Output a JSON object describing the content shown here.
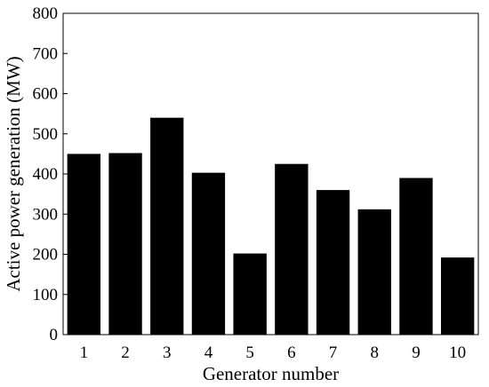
{
  "chart_data": {
    "type": "bar",
    "title": "",
    "xlabel": "Generator number",
    "ylabel": "Active power generation (MW)",
    "categories": [
      "1",
      "2",
      "3",
      "4",
      "5",
      "6",
      "7",
      "8",
      "9",
      "10"
    ],
    "values": [
      450,
      452,
      540,
      403,
      202,
      425,
      360,
      312,
      390,
      192
    ],
    "ylim": [
      0,
      800
    ],
    "yticks": [
      0,
      100,
      200,
      300,
      400,
      500,
      600,
      700,
      800
    ],
    "grid": false,
    "legend": false,
    "bar_color": "#000000",
    "axis_color": "#000000",
    "background_color": "#ffffff"
  }
}
